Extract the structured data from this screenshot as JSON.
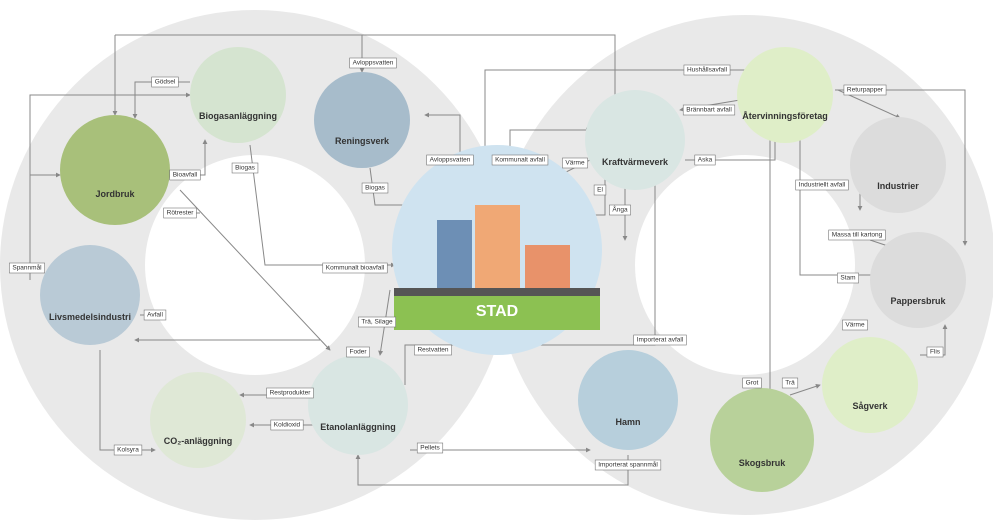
{
  "nodes": [
    {
      "label": "Jordbruk"
    },
    {
      "label": "Biogasanläggning"
    },
    {
      "label": "Reningsverk"
    },
    {
      "label": "STAD"
    },
    {
      "label": "Kraftvärmeverk"
    },
    {
      "label": "Återvinningsföretag"
    },
    {
      "label": "Industrier"
    },
    {
      "label": "Pappersbruk"
    },
    {
      "label": "Livsmedelsindustri"
    },
    {
      "label": "CO₂-anläggning"
    },
    {
      "label": "Etanolanläggning"
    },
    {
      "label": "Hamn"
    },
    {
      "label": "Skogsbruk"
    },
    {
      "label": "Sågverk"
    }
  ],
  "edge_labels": [
    "Gödsel",
    "Avloppsvatten",
    "Hushållsavfall",
    "Brännbart avfall",
    "Returpapper",
    "Biogas",
    "Biogas",
    "Bioavfall",
    "Rötrester",
    "Avloppsvatten",
    "Kommunalt avfall",
    "Värme",
    "Aska",
    "El",
    "Ånga",
    "Industriellt avfall",
    "Massa till kartong",
    "Stam",
    "Kommunalt bioavfall",
    "Spannmål",
    "Avfall",
    "Trä, Silage",
    "Foder",
    "Restvatten",
    "Importerat avfall",
    "Restprodukter",
    "Koldioxid",
    "Pellets",
    "Importerat spannmål",
    "Kolsyra",
    "Värme",
    "Flis",
    "Grot",
    "Trä"
  ]
}
